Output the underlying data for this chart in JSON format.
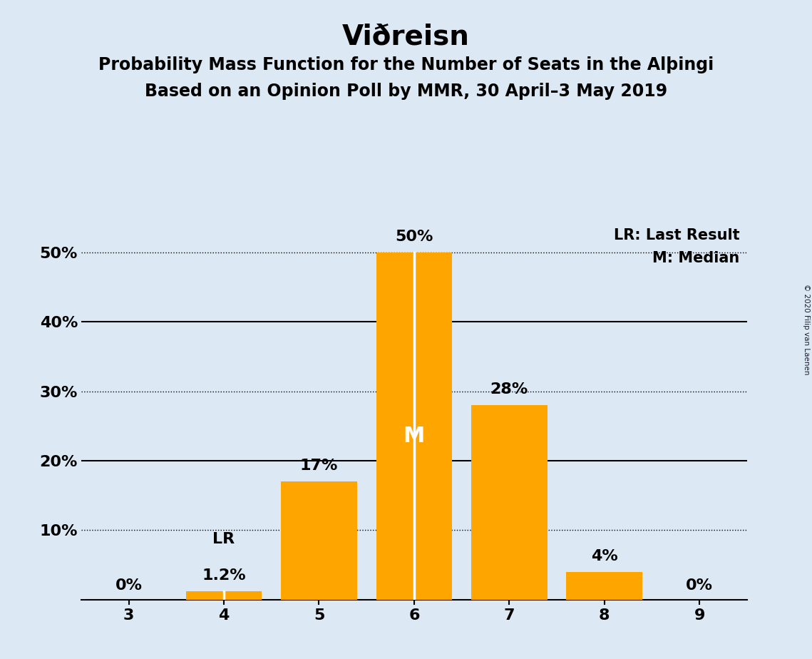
{
  "title": "Viðreisn",
  "subtitle1": "Probability Mass Function for the Number of Seats in the Alþingi",
  "subtitle2": "Based on an Opinion Poll by MMR, 30 April–3 May 2019",
  "copyright": "© 2020 Filip van Laenen",
  "categories": [
    3,
    4,
    5,
    6,
    7,
    8,
    9
  ],
  "values": [
    0.0,
    1.2,
    17.0,
    50.0,
    28.0,
    4.0,
    0.0
  ],
  "labels": [
    "0%",
    "1.2%",
    "17%",
    "50%",
    "28%",
    "4%",
    "0%"
  ],
  "bar_color": "#FFA500",
  "background_color": "#DCE9F5",
  "median_bar": 6,
  "last_result_bar": 4,
  "legend_lr": "LR: Last Result",
  "legend_m": "M: Median",
  "median_label": "M",
  "lr_label": "LR",
  "ylim": [
    0,
    55
  ],
  "yticks": [
    10,
    20,
    30,
    40,
    50
  ],
  "ytick_labels": [
    "10%",
    "20%",
    "30%",
    "40%",
    "50%"
  ],
  "dotted_yticks": [
    10,
    30,
    50
  ],
  "solid_yticks": [
    20,
    40
  ],
  "title_fontsize": 28,
  "subtitle_fontsize": 17,
  "bar_label_fontsize": 16,
  "axis_fontsize": 16,
  "legend_fontsize": 15
}
